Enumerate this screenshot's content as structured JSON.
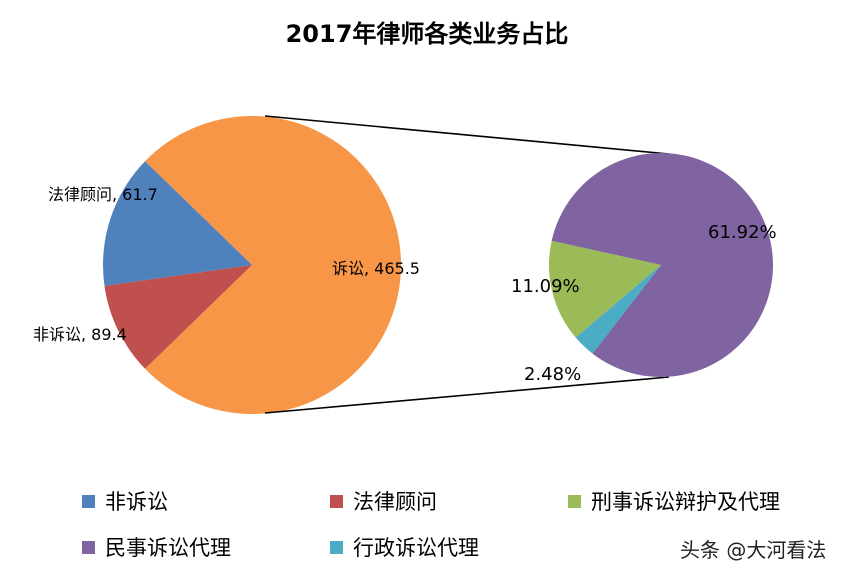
{
  "chart_data": {
    "type": "bar-of-pie",
    "title": "2017年律师各类业务占比",
    "primary": {
      "slices": [
        {
          "name": "诉讼",
          "value": 465.5,
          "label": "诉讼, 465.5",
          "color": "#F79646"
        },
        {
          "name": "非诉讼",
          "value": 89.4,
          "label": "非诉讼, 89.4",
          "color": "#4F81BD"
        },
        {
          "name": "法律顾问",
          "value": 61.7,
          "label": "法律顾问, 61.7",
          "color": "#C0504D"
        }
      ]
    },
    "secondary": {
      "parent": "诉讼",
      "slices": [
        {
          "name": "民事诉讼代理",
          "value": 61.92,
          "label": "61.92%",
          "color": "#8064A2"
        },
        {
          "name": "刑事诉讼辩护及代理",
          "value": 11.09,
          "label": "11.09%",
          "color": "#9BBB59"
        },
        {
          "name": "行政诉讼代理",
          "value": 2.48,
          "label": "2.48%",
          "color": "#4BACC6"
        }
      ]
    },
    "legend": [
      {
        "name": "非诉讼",
        "color": "#4F81BD"
      },
      {
        "name": "法律顾问",
        "color": "#C0504D"
      },
      {
        "name": "刑事诉讼辩护及代理",
        "color": "#9BBB59"
      },
      {
        "name": "民事诉讼代理",
        "color": "#8064A2"
      },
      {
        "name": "行政诉讼代理",
        "color": "#4BACC6"
      }
    ],
    "legend_position": "bottom"
  },
  "watermark": "头条 @大河看法"
}
